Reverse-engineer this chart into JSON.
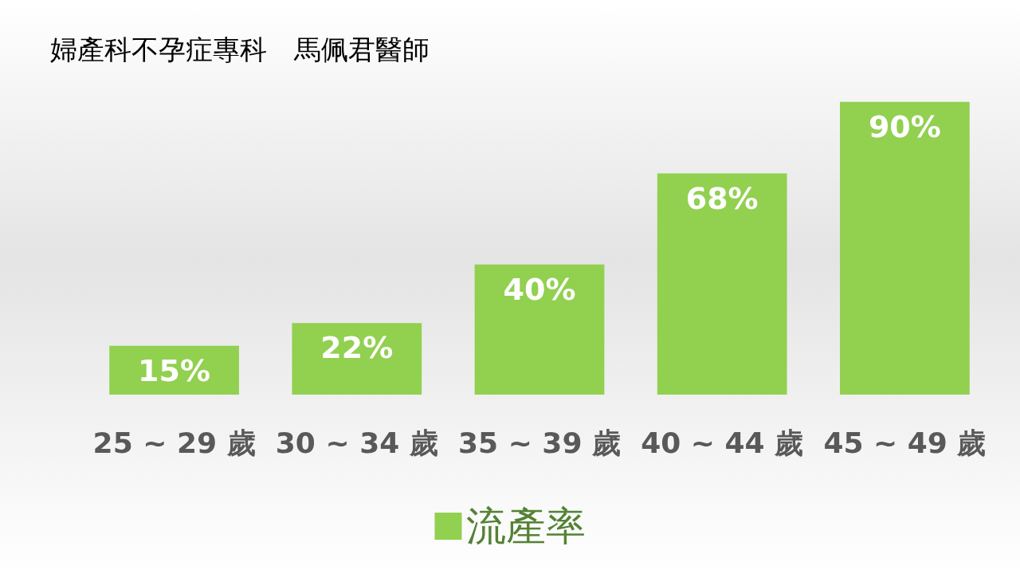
{
  "chart_data": {
    "type": "bar",
    "title": "婦產科不孕症專科　馬佩君醫師",
    "categories": [
      "25 ~ 29 歲",
      "30 ~ 34 歲",
      "35 ~ 39 歲",
      "40 ~ 44 歲",
      "45 ~ 49 歲"
    ],
    "series": [
      {
        "name": "流產率",
        "color": "#92d050",
        "values": [
          15,
          22,
          40,
          68,
          90
        ],
        "value_labels": [
          "15%",
          "22%",
          "40%",
          "68%",
          "90%"
        ]
      }
    ],
    "legend": "bottom",
    "grid": false
  }
}
